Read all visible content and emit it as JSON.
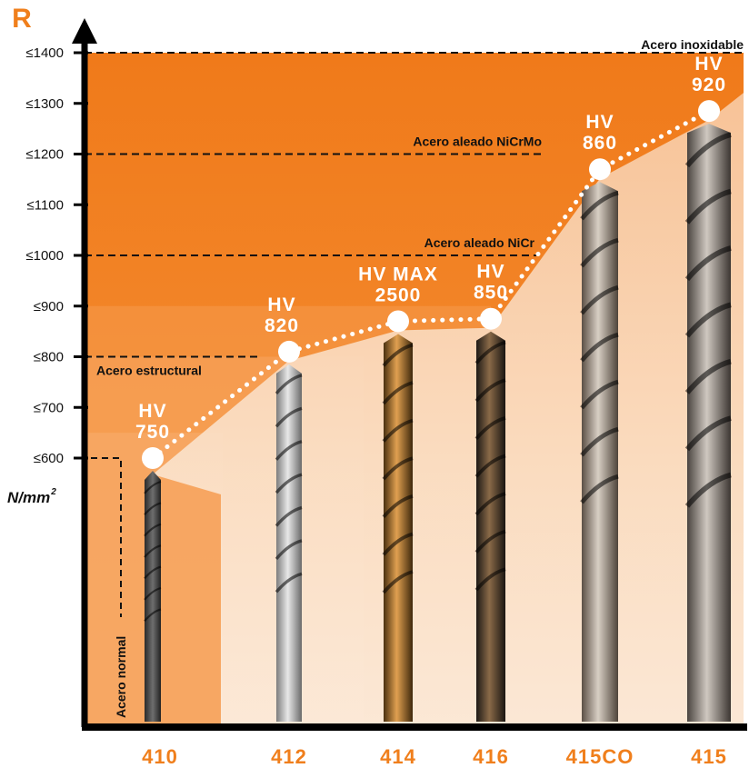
{
  "chart_data": {
    "type": "line",
    "y_axis_letter": "R",
    "ylabel_main": "N/mm",
    "ylabel_sup": "2",
    "y_ticks": [
      {
        "value": 600,
        "label": "≤600"
      },
      {
        "value": 700,
        "label": "≤700"
      },
      {
        "value": 800,
        "label": "≤800"
      },
      {
        "value": 900,
        "label": "≤900"
      },
      {
        "value": 1000,
        "label": "≤1000"
      },
      {
        "value": 1100,
        "label": "≤1100"
      },
      {
        "value": 1200,
        "label": "≤1200"
      },
      {
        "value": 1300,
        "label": "≤1300"
      },
      {
        "value": 1400,
        "label": "≤1400"
      }
    ],
    "ylim": [
      600,
      1400
    ],
    "categories": [
      "410",
      "412",
      "414",
      "416",
      "415CO",
      "415"
    ],
    "series": [
      {
        "values": [
          600,
          810,
          870,
          875,
          1170,
          1285
        ],
        "labels": [
          [
            "HV",
            "750"
          ],
          [
            "HV",
            "820"
          ],
          [
            "HV MAX",
            "2500"
          ],
          [
            "HV",
            "850"
          ],
          [
            "HV",
            "860"
          ],
          [
            "HV",
            "920"
          ]
        ]
      }
    ],
    "steel_levels": [
      {
        "name": "Acero normal",
        "value": 600
      },
      {
        "name": "Acero estructural",
        "value": 800
      },
      {
        "name": "Acero aleado NiCr",
        "value": 1000
      },
      {
        "name": "Acero aleado NiCrMo",
        "value": 1200
      },
      {
        "name": "Acero inoxidable",
        "value": 1400
      }
    ],
    "colors": {
      "accent": "#f07f1c",
      "background_orange": "#f2872a",
      "marker": "#ffffff",
      "axis": "#000000"
    }
  }
}
